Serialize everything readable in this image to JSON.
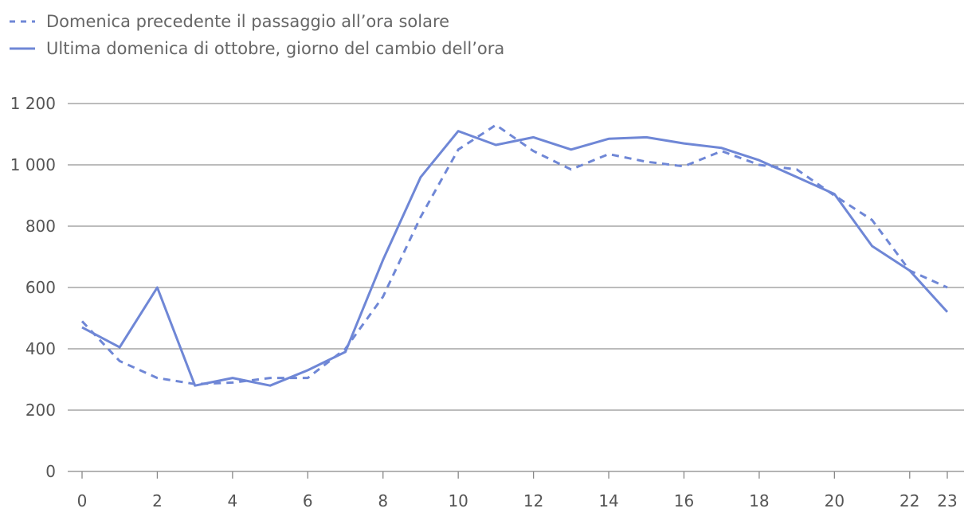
{
  "chart_data": {
    "type": "line",
    "title": "",
    "xlabel": "",
    "ylabel": "",
    "x": [
      0,
      1,
      2,
      3,
      4,
      5,
      6,
      7,
      8,
      9,
      10,
      11,
      12,
      13,
      14,
      15,
      16,
      17,
      18,
      19,
      20,
      21,
      22,
      23
    ],
    "xticks": [
      0,
      2,
      4,
      6,
      8,
      10,
      12,
      14,
      16,
      18,
      20,
      22,
      23
    ],
    "ylim": [
      0,
      1200
    ],
    "yticks": [
      0,
      200,
      400,
      600,
      800,
      1000,
      1200
    ],
    "ytick_labels": [
      "0",
      "200",
      "400",
      "600",
      "800",
      "1 000",
      "1 200"
    ],
    "grid": "horizontal",
    "legend_position": "top-left",
    "color": "#6f87d6",
    "series": [
      {
        "name": "Domenica precedente il passaggio all’ora solare",
        "style": "dashed",
        "values": [
          490,
          360,
          305,
          285,
          290,
          305,
          305,
          400,
          570,
          830,
          1050,
          1130,
          1045,
          985,
          1035,
          1010,
          995,
          1045,
          1000,
          985,
          900,
          820,
          655,
          600
        ]
      },
      {
        "name": "Ultima domenica di ottobre, giorno del cambio dell’ora",
        "style": "solid",
        "values": [
          470,
          405,
          600,
          280,
          305,
          280,
          330,
          390,
          690,
          960,
          1110,
          1065,
          1090,
          1050,
          1085,
          1090,
          1070,
          1055,
          1015,
          960,
          905,
          735,
          655,
          520
        ]
      }
    ]
  }
}
